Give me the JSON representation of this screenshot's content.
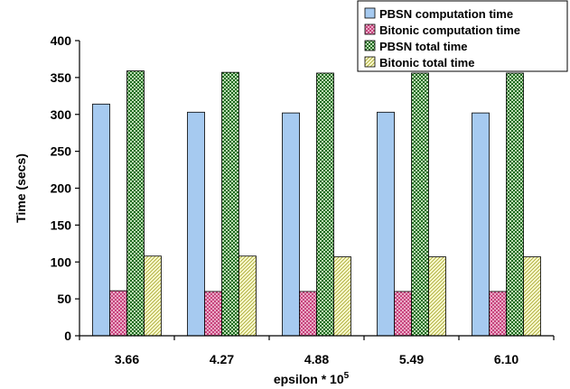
{
  "chart_data": {
    "type": "bar",
    "title": "",
    "xlabel": "epsilon * 10",
    "xlabel_superscript": "5",
    "ylabel": "Time (secs)",
    "categories": [
      "3.66",
      "4.27",
      "4.88",
      "5.49",
      "6.10"
    ],
    "ylim": [
      0,
      400
    ],
    "yticks": [
      "0",
      "50",
      "100",
      "150",
      "200",
      "250",
      "300",
      "350",
      "400"
    ],
    "grid": false,
    "legend_position": "top-right",
    "series": [
      {
        "name": "PBSN computation time",
        "values": [
          314,
          303,
          302,
          303,
          302
        ],
        "color": "#a6caf0",
        "pattern": "solid"
      },
      {
        "name": "Bitonic computation time",
        "values": [
          61,
          60,
          60,
          60,
          60
        ],
        "color": "#cc3377",
        "pattern": "crosshatch-pink"
      },
      {
        "name": "PBSN total time",
        "values": [
          359,
          357,
          356,
          356,
          356
        ],
        "color": "#1e6e1e",
        "pattern": "checker-green"
      },
      {
        "name": "Bitonic total time",
        "values": [
          108,
          108,
          107,
          107,
          107
        ],
        "color": "#cccc44",
        "pattern": "diagonal-yellow"
      }
    ]
  }
}
